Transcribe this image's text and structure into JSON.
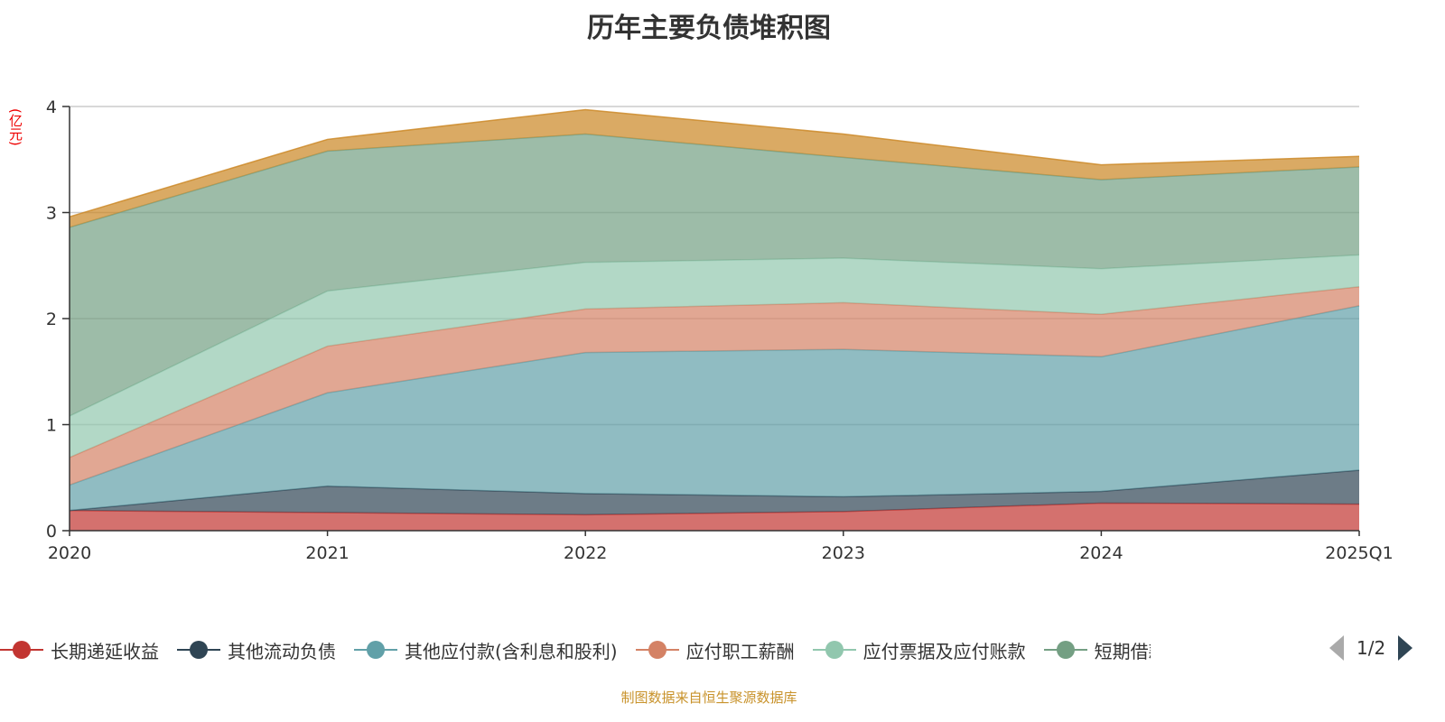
{
  "chart_data": {
    "type": "area",
    "stacked": true,
    "title": "历年主要负债堆积图",
    "ylabel": "(亿元)",
    "xlabel": "",
    "categories": [
      "2020",
      "2021",
      "2022",
      "2023",
      "2024",
      "2025Q1"
    ],
    "ylim": [
      0,
      4
    ],
    "yticks": [
      0,
      1,
      2,
      3,
      4
    ],
    "grid": true,
    "legend_position": "bottom",
    "series": [
      {
        "name": "长期递延收益",
        "color": "#c23531",
        "values": [
          0.19,
          0.17,
          0.15,
          0.18,
          0.26,
          0.25
        ]
      },
      {
        "name": "其他流动负债",
        "color": "#2f4554",
        "values": [
          0.0,
          0.25,
          0.2,
          0.14,
          0.11,
          0.32
        ]
      },
      {
        "name": "其他应付款(含利息和股利)",
        "color": "#61a0a8",
        "values": [
          0.24,
          0.88,
          1.33,
          1.39,
          1.27,
          1.55
        ]
      },
      {
        "name": "应付职工薪酬",
        "color": "#d48265",
        "values": [
          0.26,
          0.44,
          0.41,
          0.44,
          0.4,
          0.18
        ]
      },
      {
        "name": "应付票据及应付账款",
        "color": "#91c7ae",
        "values": [
          0.39,
          0.52,
          0.44,
          0.42,
          0.43,
          0.3
        ]
      },
      {
        "name": "短期借款",
        "legend_label": "短期借款",
        "color": "#749f83",
        "values": [
          1.78,
          1.32,
          1.21,
          0.95,
          0.84,
          0.83
        ]
      },
      {
        "name": "",
        "color": "#ca8622",
        "values": [
          0.1,
          0.11,
          0.23,
          0.22,
          0.14,
          0.1
        ]
      }
    ]
  },
  "legend": {
    "page": "1/2",
    "visible": [
      "长期递延收益",
      "其他流动负债",
      "其他应付款(含利息和股利)",
      "应付职工薪酬",
      "应付票据及应付账款",
      "短期借款"
    ]
  },
  "source": "制图数据来自恒生聚源数据库"
}
